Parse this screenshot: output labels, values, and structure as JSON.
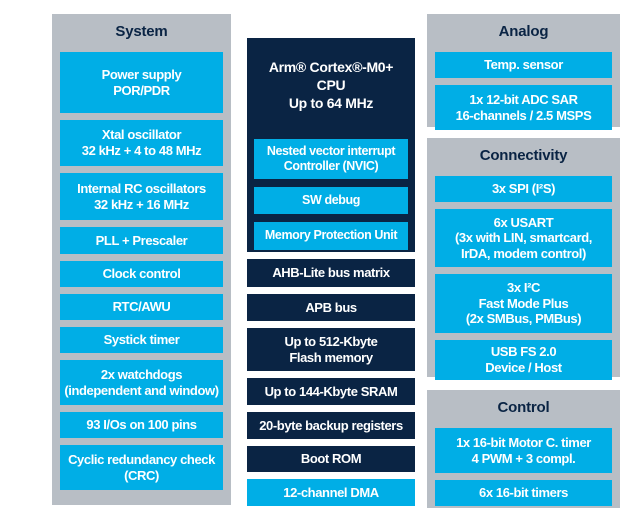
{
  "groups": {
    "system": {
      "header": "System",
      "items": [
        "Power supply\nPOR/PDR",
        "Xtal oscillator\n32 kHz + 4 to 48 MHz",
        "Internal RC oscillators\n32 kHz + 16 MHz",
        "PLL + Prescaler",
        "Clock control",
        "RTC/AWU",
        "Systick timer",
        "2x watchdogs\n(independent and window)",
        "93 I/Os on 100 pins",
        "Cyclic redundancy check\n(CRC)"
      ]
    },
    "cpu": {
      "title": "Arm® Cortex®-M0+ CPU\nUp to 64 MHz",
      "items": [
        "Nested vector interrupt\nController (NVIC)",
        "SW debug",
        "Memory Protection Unit"
      ]
    },
    "bus_memory": {
      "items": [
        "AHB-Lite bus matrix",
        "APB bus",
        "Up to 512-Kbyte\nFlash memory",
        "Up to 144-Kbyte SRAM",
        "20-byte backup registers",
        "Boot ROM",
        "12-channel DMA"
      ]
    },
    "analog": {
      "header": "Analog",
      "items": [
        "Temp. sensor",
        "1x 12-bit ADC SAR\n16-channels / 2.5 MSPS"
      ]
    },
    "connectivity": {
      "header": "Connectivity",
      "items": [
        "3x SPI (I²S)",
        "6x USART\n(3x with LIN, smartcard,\nIrDA, modem control)",
        "3x I²C\nFast Mode Plus\n(2x SMBus, PMBus)",
        "USB FS 2.0\nDevice / Host"
      ]
    },
    "control": {
      "header": "Control",
      "items": [
        "1x 16-bit Motor C. timer\n4 PWM + 3 compl.",
        "6x 16-bit timers"
      ]
    }
  },
  "colors": {
    "cyan": "#00aee6",
    "navy": "#0a2444",
    "panel_gray": "#b8bec5",
    "background": "#ffffff"
  }
}
